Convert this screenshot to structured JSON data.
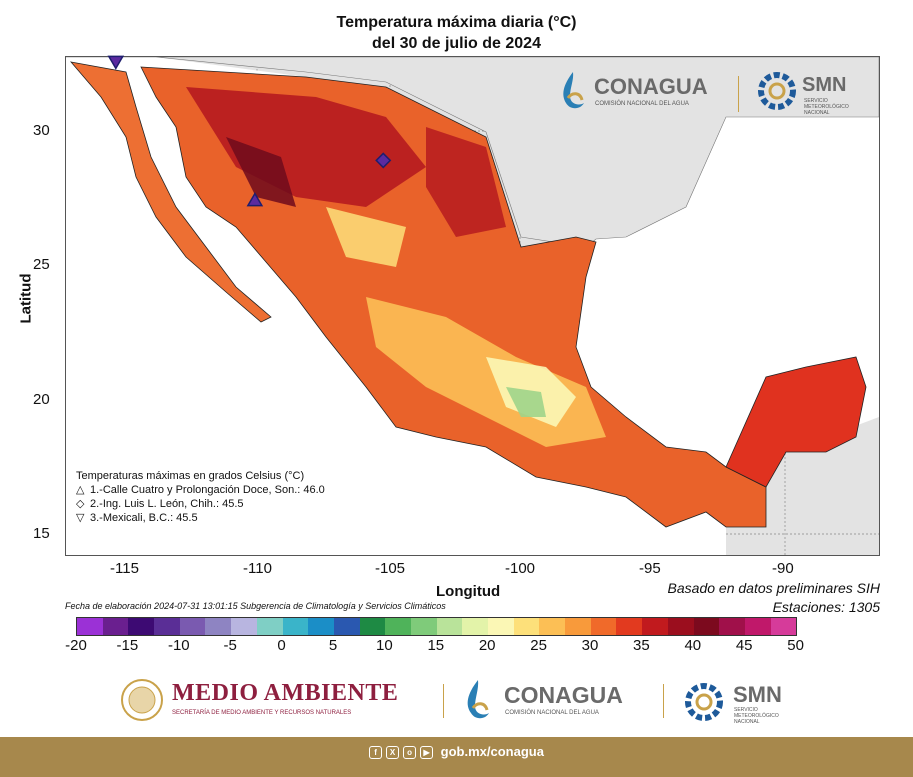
{
  "title_line1": "Temperatura máxima diaria (°C)",
  "title_line2": "del 30 de julio de 2024",
  "ylabel": "Latitud",
  "xlabel": "Longitud",
  "lat_ticks": [
    "30",
    "25",
    "20",
    "15"
  ],
  "lon_ticks": [
    "-115",
    "-110",
    "-105",
    "-100",
    "-95",
    "-90"
  ],
  "legend": {
    "title": "Temperaturas máximas en grados Celsius (°C)",
    "items": [
      {
        "symbol": "△",
        "text": "1.-Calle Cuatro y Prolongación Doce, Son.: 46.0"
      },
      {
        "symbol": "◇",
        "text": "2.-Ing. Luis L. León, Chih.: 45.5"
      },
      {
        "symbol": "▽",
        "text": "3.-Mexicali, B.C.: 45.5"
      }
    ]
  },
  "basis_line1": "Basado en datos preliminares SIH",
  "basis_line2": "Estaciones:  1305",
  "footnote": "Fecha de elaboración 2024-07-31 13:01:15 Subgerencia de Climatología y Servicios Climáticos",
  "colorbar": {
    "labels": [
      "-20",
      "-15",
      "-10",
      "-5",
      "0",
      "5",
      "10",
      "15",
      "20",
      "25",
      "30",
      "35",
      "40",
      "45",
      "50"
    ],
    "colors": [
      "#9b31d6",
      "#6a1f8f",
      "#3d0a73",
      "#5a2e96",
      "#7a5ab0",
      "#8e84c2",
      "#b8b5e0",
      "#7fcfc5",
      "#3ab4c9",
      "#1b8ec7",
      "#2a58b0",
      "#1e8a44",
      "#4fb35a",
      "#7fcb7a",
      "#b9e39a",
      "#e3f3a9",
      "#fbf7b5",
      "#fde07a",
      "#fcbf55",
      "#f89a3b",
      "#f06a2a",
      "#e23a1f",
      "#c11a1e",
      "#9b0e1e",
      "#7c0a1e",
      "#a0104a",
      "#c0186a",
      "#d63b9a"
    ]
  },
  "markers": [
    {
      "symbol": "triangle-up",
      "lon": -110.1,
      "lat": 27.4
    },
    {
      "symbol": "diamond",
      "lon": -105.3,
      "lat": 28.9
    },
    {
      "symbol": "triangle-down",
      "lon": -115.3,
      "lat": 32.6
    }
  ],
  "axes": {
    "lon_range": [
      -117.2,
      -86.8
    ],
    "lat_range": [
      14.2,
      32.8
    ]
  },
  "logos": {
    "conagua": "CONAGUA",
    "conagua_sub": "COMISIÓN NACIONAL DEL AGUA",
    "smn": "SMN",
    "smn_sub": "SERVICIO METEOROLÓGICO NACIONAL",
    "medio_ambiente": "MEDIO AMBIENTE",
    "medio_ambiente_sub": "SECRETARÍA DE MEDIO AMBIENTE Y RECURSOS NATURALES"
  },
  "footer_url": "gob.mx/conagua",
  "social_icons": [
    "facebook-icon",
    "x-icon",
    "instagram-icon",
    "youtube-icon"
  ]
}
